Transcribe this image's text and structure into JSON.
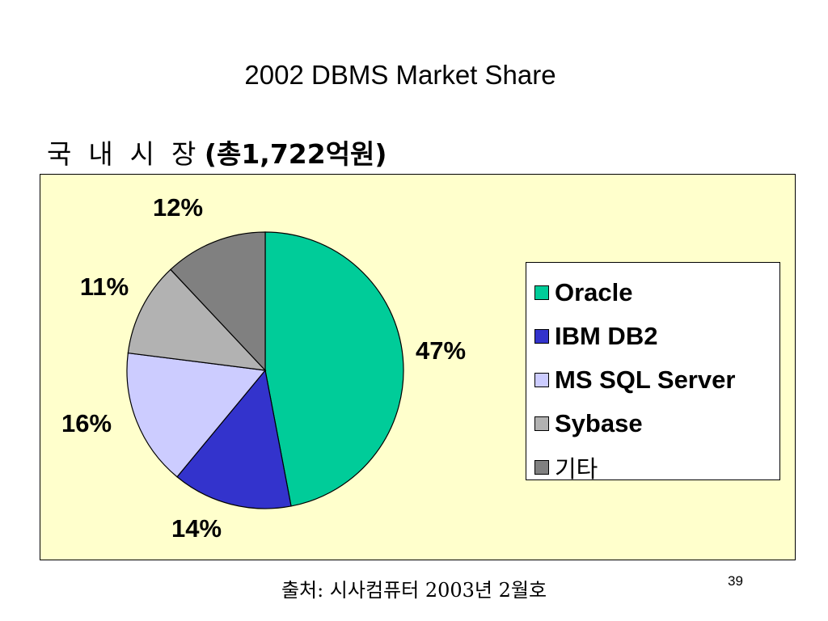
{
  "slide": {
    "title": "2002 DBMS Market Share",
    "subtitle_korean": "국  내  시  장 ",
    "subtitle_total": "(총1,722억원)",
    "source": "출처: 시사컴퓨터 2003년 2월호",
    "page_number": "39"
  },
  "chart_data": {
    "type": "pie",
    "title": "",
    "slices": [
      {
        "name": "Oracle",
        "value": 47,
        "label": "47%",
        "color": "#00cc99"
      },
      {
        "name": "IBM DB2",
        "value": 14,
        "label": "14%",
        "color": "#3333cc"
      },
      {
        "name": "MS SQL Server",
        "value": 16,
        "label": "16%",
        "color": "#ccccff"
      },
      {
        "name": "Sybase",
        "value": 11,
        "label": "11%",
        "color": "#b2b2b2"
      },
      {
        "name": "기타",
        "value": 12,
        "label": "12%",
        "color": "#808080"
      }
    ],
    "start": "12 o'clock, clockwise",
    "legend_position": "right",
    "background_color": "#ffffcc"
  }
}
